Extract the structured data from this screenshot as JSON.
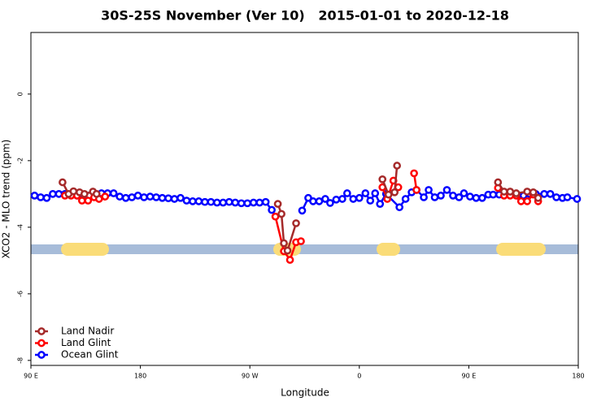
{
  "chart_data": {
    "type": "line",
    "title": "30S-25S November (Ver 10)   2015-01-01 to 2020-12-18",
    "xlabel": "Longitude",
    "ylabel": "XCO2 - MLO trend (ppm)",
    "xlim": [
      90,
      540
    ],
    "xticks": [
      {
        "value": 90,
        "label": "90 E"
      },
      {
        "value": 180,
        "label": "180"
      },
      {
        "value": 270,
        "label": "90 W"
      },
      {
        "value": 360,
        "label": "0"
      },
      {
        "value": 450,
        "label": "90 E"
      },
      {
        "value": 540,
        "label": "180"
      }
    ],
    "ylim": [
      -8.15,
      1.85
    ],
    "yticks": [
      0,
      -2,
      -4,
      -6,
      -8
    ],
    "legend": "bottom-left",
    "series": [
      {
        "name": "Land Nadir",
        "color": "#a52a2a",
        "x": [
          116,
          121,
          125,
          130,
          134,
          141,
          144,
          200,
          293,
          296,
          298,
          301,
          308,
          350,
          379,
          384,
          389,
          391,
          440,
          474,
          479,
          484,
          489,
          498,
          503,
          507
        ],
        "values": [
          -2.65,
          -3.0,
          -2.92,
          -2.95,
          -3.0,
          -2.93,
          -3.0,
          null,
          -3.3,
          -3.6,
          -4.48,
          -4.7,
          -3.88,
          null,
          -2.56,
          -3.02,
          -2.95,
          -2.15,
          null,
          -2.65,
          -2.93,
          -2.93,
          -2.98,
          -2.93,
          -2.95,
          -3.12
        ]
      },
      {
        "name": "Land Glint",
        "color": "#ff0000",
        "x": [
          118,
          123,
          128,
          132,
          137,
          142,
          146,
          151,
          200,
          291,
          298,
          303,
          308,
          312,
          350,
          379,
          383,
          388,
          392,
          400,
          405,
          407,
          440,
          474,
          479,
          484,
          489,
          493,
          498,
          503,
          507
        ],
        "values": [
          -3.05,
          -3.05,
          -3.05,
          -3.2,
          -3.2,
          -3.1,
          -3.15,
          -3.08,
          null,
          -3.68,
          -4.72,
          -4.98,
          -4.45,
          -4.42,
          null,
          -2.8,
          -3.15,
          -2.6,
          -2.8,
          null,
          -2.38,
          -2.88,
          null,
          -2.82,
          -3.05,
          -3.05,
          -3.05,
          -3.22,
          -3.22,
          -3.02,
          -3.22
        ]
      },
      {
        "name": "Ocean Glint",
        "color": "#0000ff",
        "x": [
          93,
          98,
          103,
          108,
          113,
          118,
          123,
          128,
          133,
          138,
          143,
          148,
          153,
          158,
          163,
          168,
          173,
          178,
          183,
          188,
          193,
          198,
          203,
          208,
          213,
          218,
          223,
          228,
          233,
          238,
          243,
          248,
          253,
          258,
          263,
          268,
          273,
          278,
          283,
          288,
          300,
          313,
          318,
          322,
          327,
          332,
          336,
          341,
          346,
          350,
          355,
          360,
          365,
          369,
          373,
          377,
          382,
          393,
          398,
          403,
          407,
          413,
          417,
          422,
          427,
          432,
          437,
          442,
          446,
          451,
          456,
          461,
          466,
          470,
          475,
          480,
          485,
          490,
          495,
          500,
          505,
          512,
          517,
          522,
          527,
          531,
          539
        ],
        "values": [
          -3.05,
          -3.1,
          -3.12,
          -3.0,
          -3.0,
          -3.0,
          -3.02,
          -3.05,
          -3.05,
          -3.05,
          -3.05,
          -2.98,
          -2.98,
          -2.98,
          -3.08,
          -3.12,
          -3.1,
          -3.05,
          -3.1,
          -3.08,
          -3.1,
          -3.12,
          -3.13,
          -3.15,
          -3.12,
          -3.2,
          -3.22,
          -3.22,
          -3.24,
          -3.24,
          -3.26,
          -3.26,
          -3.24,
          -3.26,
          -3.28,
          -3.28,
          -3.26,
          -3.26,
          -3.24,
          -3.48,
          null,
          -3.5,
          -3.12,
          -3.22,
          -3.22,
          -3.15,
          -3.27,
          -3.17,
          -3.15,
          -2.98,
          -3.15,
          -3.12,
          -2.98,
          -3.2,
          -2.98,
          -3.3,
          -3.0,
          -3.4,
          -3.15,
          -2.95,
          -2.88,
          -3.1,
          -2.88,
          -3.1,
          -3.05,
          -2.88,
          -3.05,
          -3.1,
          -2.98,
          -3.08,
          -3.12,
          -3.12,
          -3.02,
          -3.02,
          -3.02,
          -3.0,
          -3.02,
          -3.05,
          -3.05,
          -3.0,
          -3.0,
          -3.0,
          -3.0,
          -3.1,
          -3.12,
          -3.1,
          -3.15
        ]
      }
    ]
  }
}
